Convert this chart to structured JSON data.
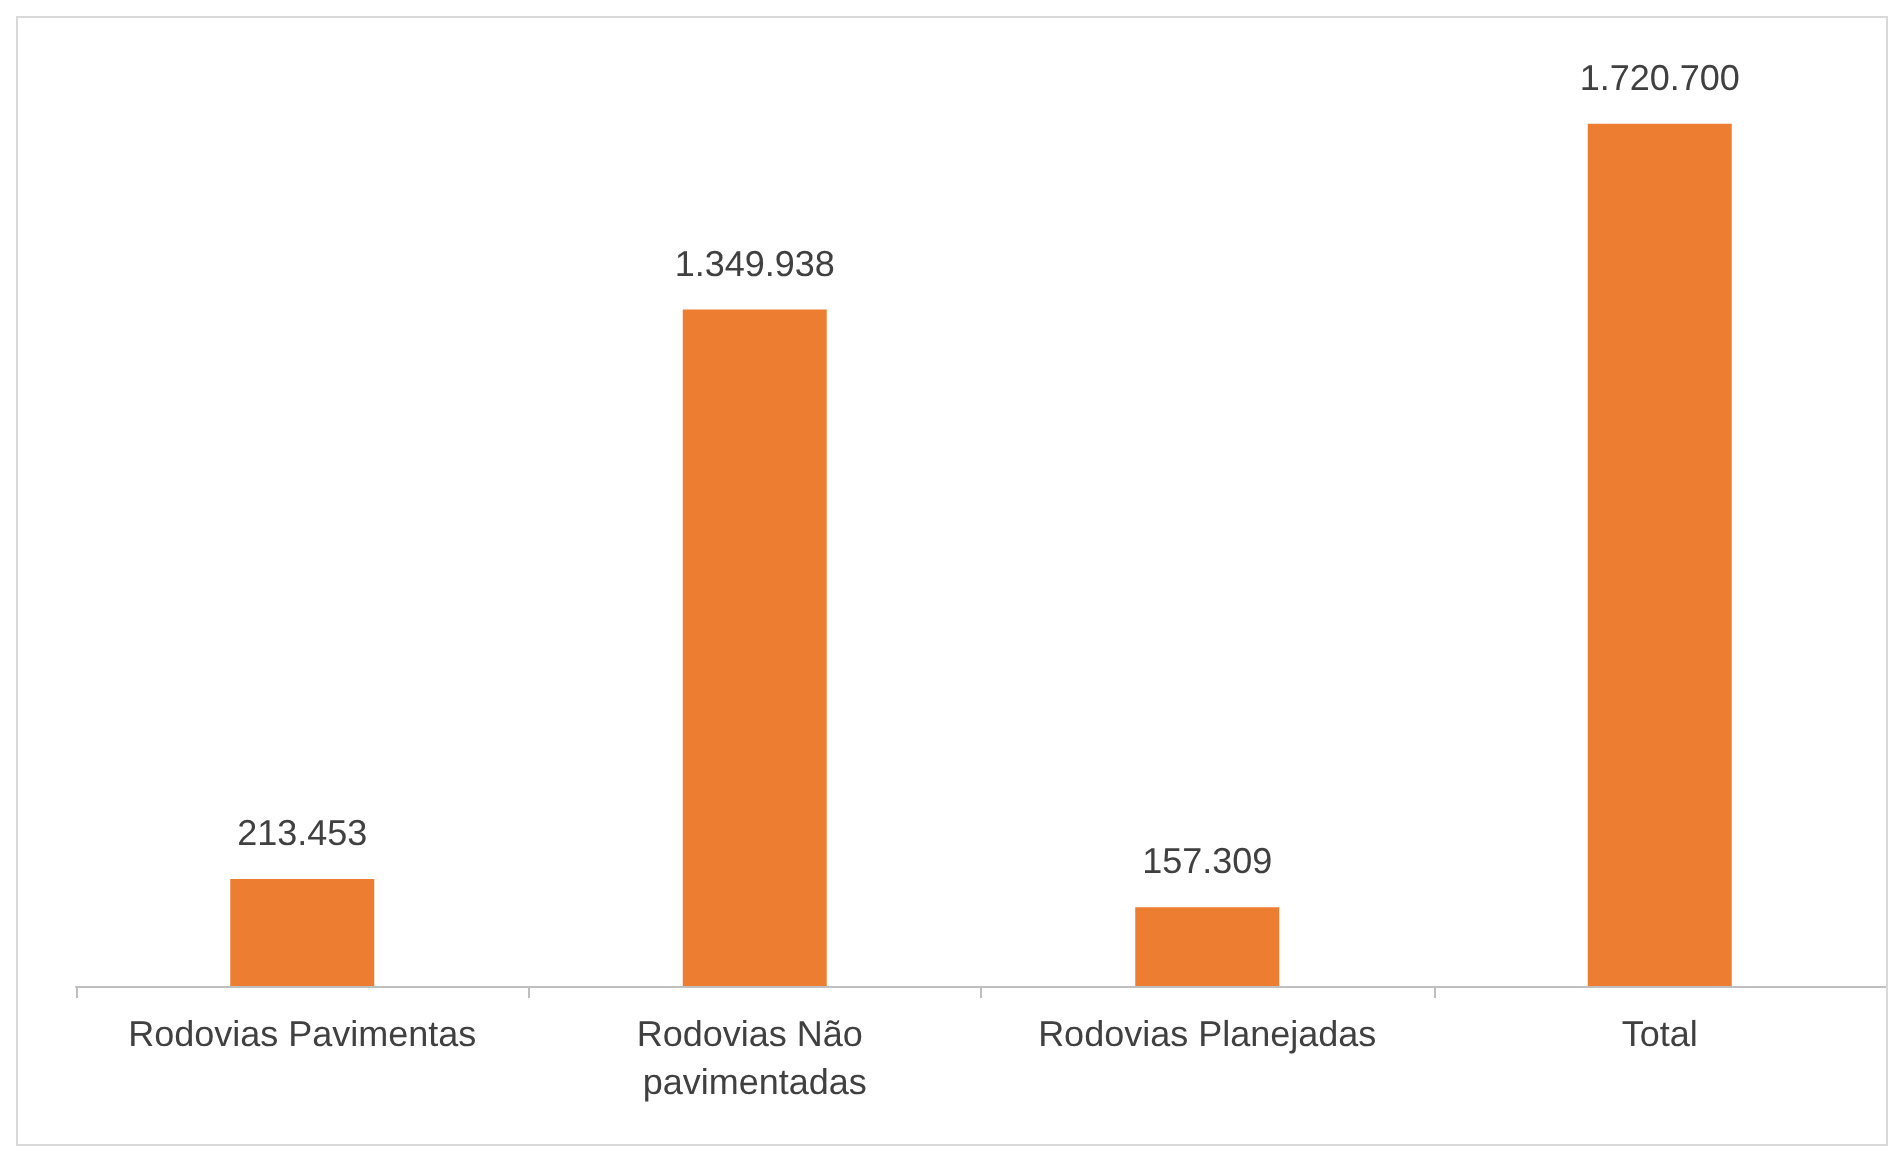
{
  "chart_data": {
    "type": "bar",
    "categories": [
      "Rodovias Pavimentas",
      "Rodovias Não pavimentadas",
      "Rodovias Planejadas",
      "Total"
    ],
    "values": [
      213453,
      1349938,
      157309,
      1720700
    ],
    "value_labels": [
      "213.453",
      "1.349.938",
      "157.309",
      "1.720.700"
    ],
    "color": "#ed7d31"
  }
}
